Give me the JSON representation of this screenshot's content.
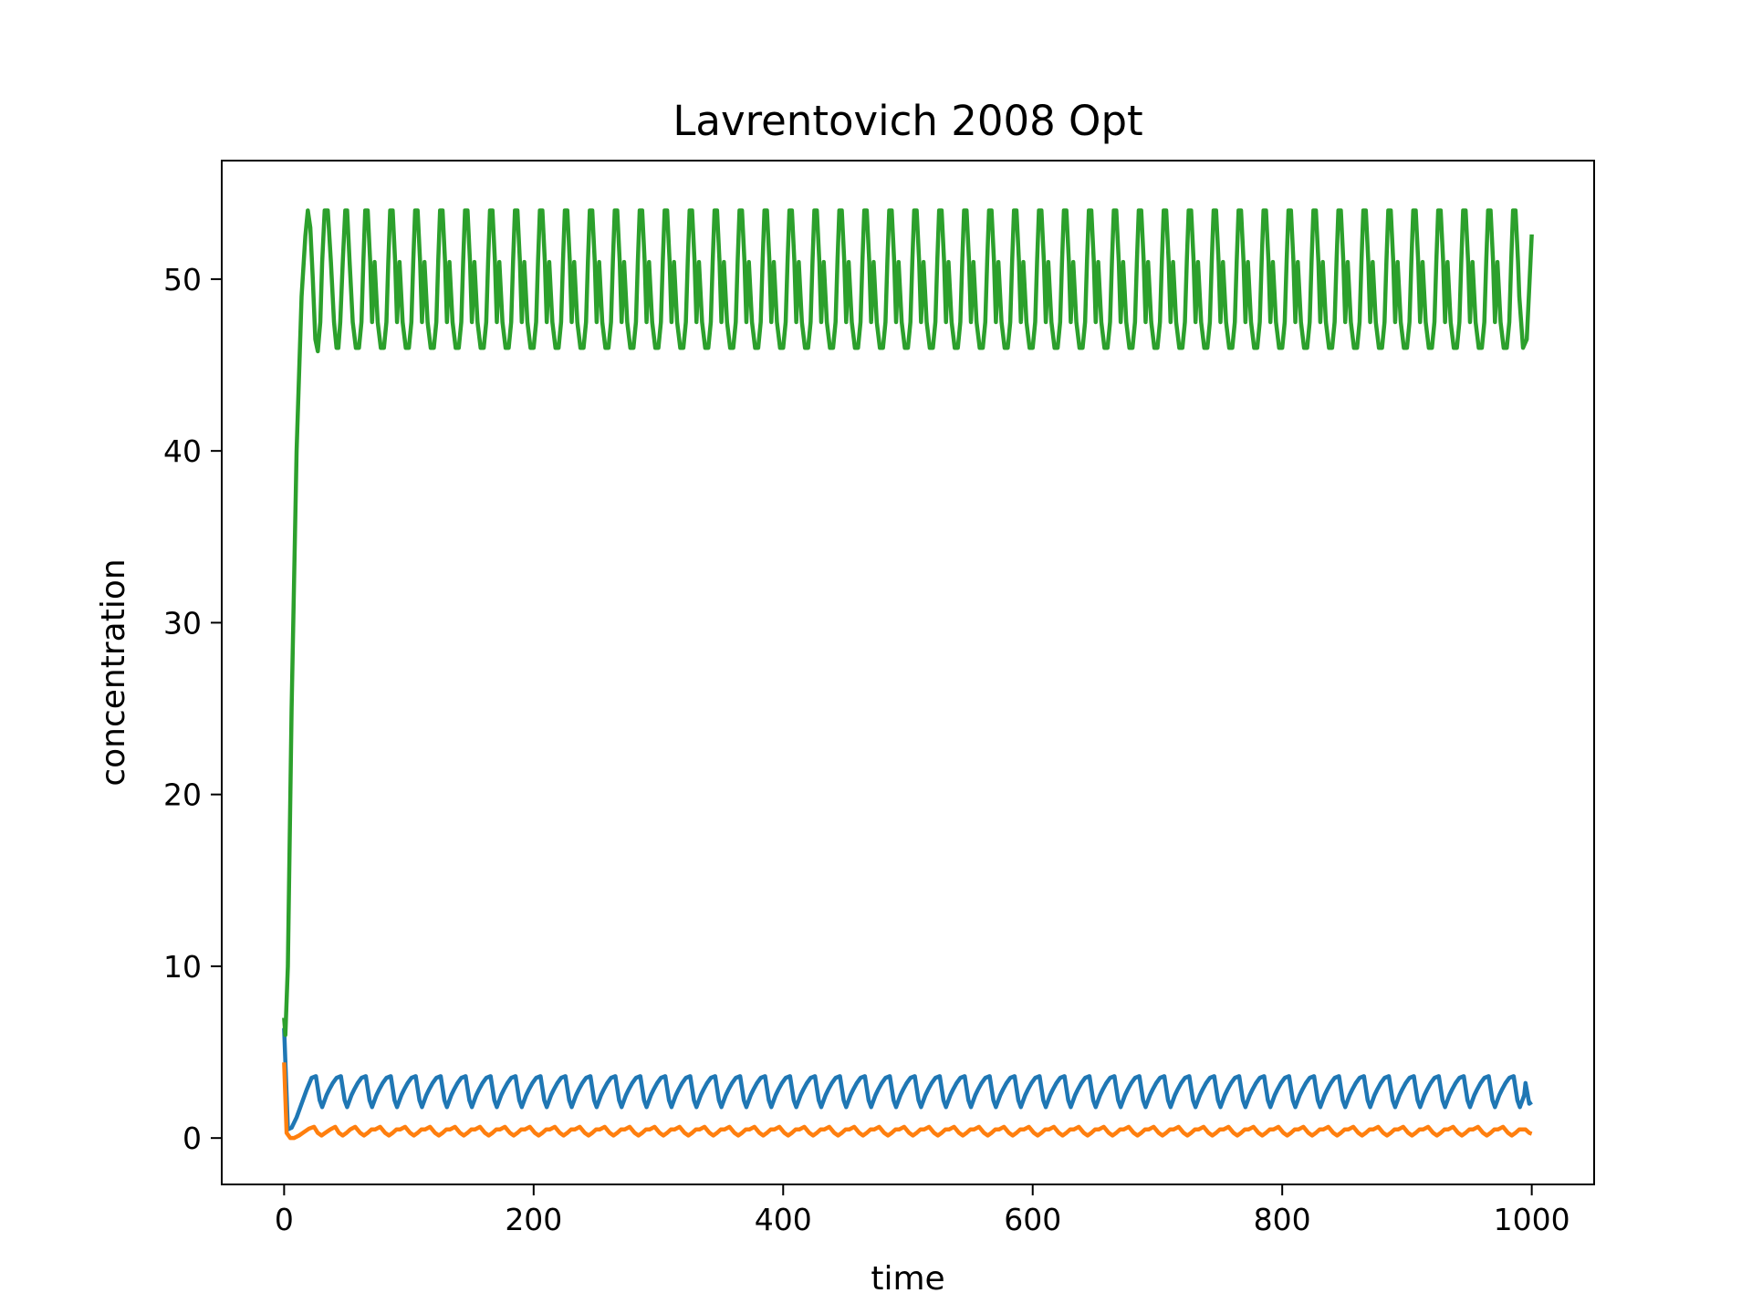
{
  "chart_data": {
    "type": "line",
    "title": "Lavrentovich 2008 Opt",
    "xlabel": "time",
    "ylabel": "concentration",
    "xlim": [
      -50,
      1050
    ],
    "ylim": [
      -2.7,
      56.9
    ],
    "xticks": [
      0,
      200,
      400,
      600,
      800,
      1000
    ],
    "yticks": [
      0,
      10,
      20,
      30,
      40,
      50
    ],
    "grid": false,
    "legend": "none",
    "period": 20,
    "series": [
      {
        "color": "#1f77b4",
        "x": [
          0,
          3,
          6,
          10,
          14,
          18,
          22,
          25.5,
          28.5,
          30.5,
          32,
          34,
          36,
          39,
          42,
          45.5,
          48.5,
          50.5,
          52,
          54,
          56,
          59,
          62,
          65.5,
          68.5,
          70.5,
          72,
          74,
          76,
          79,
          82,
          85.5,
          88.5,
          90.5
        ],
        "y": [
          6.4,
          0.5,
          0.6,
          1.2,
          2.0,
          2.8,
          3.5,
          3.6,
          2.2,
          1.8,
          2.1,
          2.5,
          2.8,
          3.2,
          3.5,
          3.6,
          2.2,
          1.8,
          2.1,
          2.5,
          2.8,
          3.2,
          3.5,
          3.6,
          2.2,
          1.8,
          2.1,
          2.5,
          2.8,
          3.2,
          3.5,
          3.6,
          2.2,
          1.8
        ],
        "tail": {
          "x": [
            995,
            998,
            1000
          ],
          "y": [
            3.2,
            2.0,
            2.1
          ]
        }
      },
      {
        "color": "#ff7f0e",
        "x": [
          0,
          2,
          5,
          8,
          12,
          16,
          20,
          24,
          27,
          30,
          33,
          37,
          41,
          44,
          47,
          50,
          53,
          57,
          61,
          64,
          67,
          70
        ],
        "y": [
          4.4,
          0.3,
          0.0,
          0.0,
          0.15,
          0.35,
          0.55,
          0.65,
          0.3,
          0.15,
          0.3,
          0.5,
          0.65,
          0.3,
          0.15,
          0.3,
          0.5,
          0.65,
          0.3,
          0.15,
          0.3,
          0.5
        ],
        "tail": {
          "x": [
            995,
            998,
            1000
          ],
          "y": [
            0.5,
            0.3,
            0.25
          ]
        }
      },
      {
        "color": "#2ca02c",
        "x": [
          0,
          1,
          3,
          6,
          10,
          14,
          17,
          19,
          21,
          23,
          25,
          27,
          29,
          30.5,
          32.5,
          35,
          37.5,
          40,
          42,
          43.5,
          45,
          47,
          49,
          50.5,
          52.5,
          55,
          57.5,
          60,
          62,
          63.5,
          65,
          67,
          69,
          70.5
        ],
        "y": [
          7.0,
          6.0,
          10.0,
          25.0,
          40.0,
          49.0,
          52.5,
          54.0,
          53.0,
          50.0,
          46.5,
          45.8,
          47.5,
          51.0,
          54.0,
          54.0,
          51.0,
          47.5,
          46.0,
          46.0,
          47.5,
          51.0,
          54.0,
          54.0,
          51.0,
          47.5,
          46.0,
          46.0,
          47.5,
          51.0,
          54.0,
          54.0,
          51.0,
          47.5
        ],
        "tail": {
          "x": [
            990,
            993,
            996,
            998,
            1000
          ],
          "y": [
            49.0,
            46.0,
            46.5,
            49.5,
            52.6
          ]
        }
      }
    ]
  }
}
